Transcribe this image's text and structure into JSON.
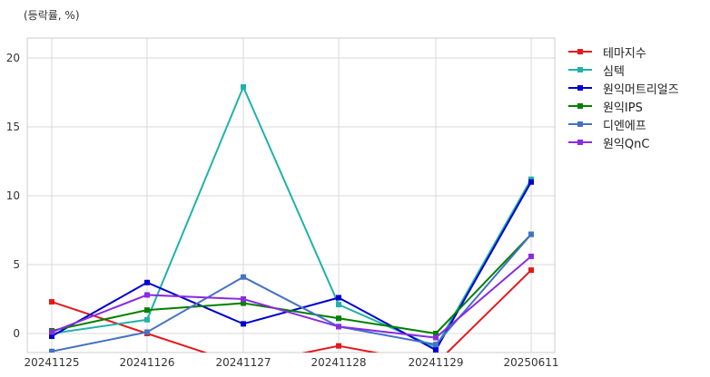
{
  "chart_data": {
    "type": "line",
    "unit_label": "(등락률, %)",
    "categories": [
      "20241125",
      "20241126",
      "20241127",
      "20241128",
      "20241129",
      "20250611"
    ],
    "ylim": [
      -1.3,
      21.5
    ],
    "yticks": [
      0,
      5,
      10,
      15,
      20
    ],
    "grid": true,
    "legend_position": "right",
    "series": [
      {
        "name": "테마지수",
        "color": "#e31a1c",
        "values": [
          2.3,
          0.0,
          -2.3,
          -0.9,
          -2.2,
          4.6
        ]
      },
      {
        "name": "심텍",
        "color": "#20b2aa",
        "values": [
          0.0,
          1.0,
          17.9,
          2.1,
          -1.0,
          11.2
        ]
      },
      {
        "name": "원익머트리얼즈",
        "color": "#0000cd",
        "values": [
          -0.2,
          3.7,
          0.7,
          2.6,
          -1.2,
          11.0
        ]
      },
      {
        "name": "원익IPS",
        "color": "#008000",
        "values": [
          0.2,
          1.7,
          2.2,
          1.1,
          0.0,
          7.2
        ]
      },
      {
        "name": "디엔에프",
        "color": "#4472c4",
        "values": [
          -1.3,
          0.1,
          4.1,
          0.5,
          -0.8,
          7.2
        ]
      },
      {
        "name": "원익QnC",
        "color": "#8a2be2",
        "values": [
          0.1,
          2.8,
          2.5,
          0.5,
          -0.3,
          5.6
        ]
      }
    ]
  }
}
